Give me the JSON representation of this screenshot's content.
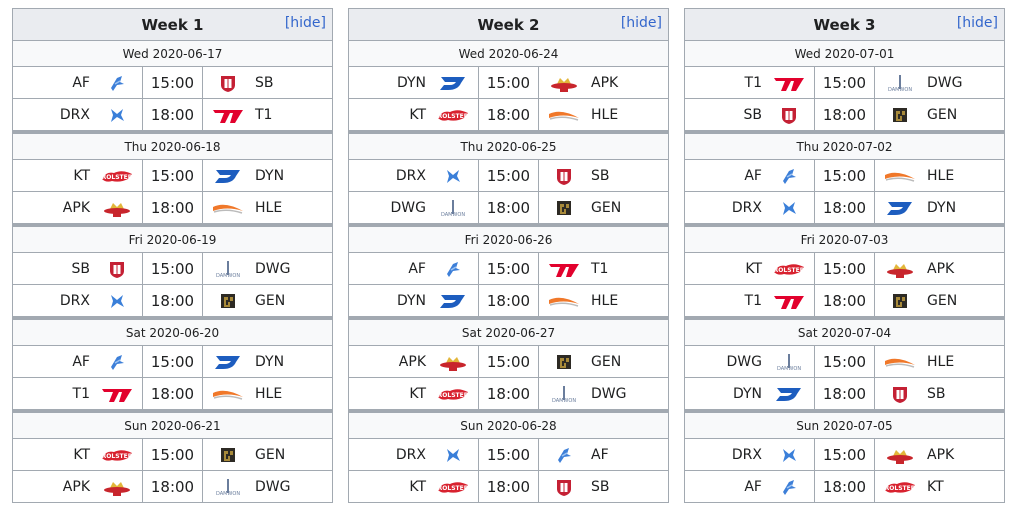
{
  "hide_label": "[hide]",
  "logo_colors": {
    "AF": "#3d7fd8",
    "DRX": "#3a7fd9",
    "SB": "#c42034",
    "T1": "#e2012d",
    "KT": "#d8222f",
    "DYN": "#1d5dbf",
    "APK": "#c8252c",
    "HLE": "#f0782a",
    "DWG": "#6a7d9c",
    "GEN": "#a88a3a"
  },
  "logo_icons": {
    "AF": "af-fox-icon",
    "DRX": "drx-x-icon",
    "SB": "sb-shield-icon",
    "T1": "t1-logo-icon",
    "KT": "kt-rolster-icon",
    "DYN": "dyn-d-icon",
    "APK": "apk-prince-icon",
    "HLE": "hle-wave-icon",
    "DWG": "dwg-damwon-icon",
    "GEN": "gen-g-icon"
  },
  "weeks": [
    {
      "title": "Week 1",
      "days": [
        {
          "date": "Wed 2020-06-17",
          "matches": [
            {
              "team1": "AF",
              "time": "15:00",
              "team2": "SB"
            },
            {
              "team1": "DRX",
              "time": "18:00",
              "team2": "T1"
            }
          ]
        },
        {
          "date": "Thu 2020-06-18",
          "matches": [
            {
              "team1": "KT",
              "time": "15:00",
              "team2": "DYN"
            },
            {
              "team1": "APK",
              "time": "18:00",
              "team2": "HLE"
            }
          ]
        },
        {
          "date": "Fri 2020-06-19",
          "matches": [
            {
              "team1": "SB",
              "time": "15:00",
              "team2": "DWG"
            },
            {
              "team1": "DRX",
              "time": "18:00",
              "team2": "GEN"
            }
          ]
        },
        {
          "date": "Sat 2020-06-20",
          "matches": [
            {
              "team1": "AF",
              "time": "15:00",
              "team2": "DYN"
            },
            {
              "team1": "T1",
              "time": "18:00",
              "team2": "HLE"
            }
          ]
        },
        {
          "date": "Sun 2020-06-21",
          "matches": [
            {
              "team1": "KT",
              "time": "15:00",
              "team2": "GEN"
            },
            {
              "team1": "APK",
              "time": "18:00",
              "team2": "DWG"
            }
          ]
        }
      ]
    },
    {
      "title": "Week 2",
      "days": [
        {
          "date": "Wed 2020-06-24",
          "matches": [
            {
              "team1": "DYN",
              "time": "15:00",
              "team2": "APK"
            },
            {
              "team1": "KT",
              "time": "18:00",
              "team2": "HLE"
            }
          ]
        },
        {
          "date": "Thu 2020-06-25",
          "matches": [
            {
              "team1": "DRX",
              "time": "15:00",
              "team2": "SB"
            },
            {
              "team1": "DWG",
              "time": "18:00",
              "team2": "GEN"
            }
          ]
        },
        {
          "date": "Fri 2020-06-26",
          "matches": [
            {
              "team1": "AF",
              "time": "15:00",
              "team2": "T1"
            },
            {
              "team1": "DYN",
              "time": "18:00",
              "team2": "HLE"
            }
          ]
        },
        {
          "date": "Sat 2020-06-27",
          "matches": [
            {
              "team1": "APK",
              "time": "15:00",
              "team2": "GEN"
            },
            {
              "team1": "KT",
              "time": "18:00",
              "team2": "DWG"
            }
          ]
        },
        {
          "date": "Sun 2020-06-28",
          "matches": [
            {
              "team1": "DRX",
              "time": "15:00",
              "team2": "AF"
            },
            {
              "team1": "KT",
              "time": "18:00",
              "team2": "SB"
            }
          ]
        }
      ]
    },
    {
      "title": "Week 3",
      "days": [
        {
          "date": "Wed 2020-07-01",
          "matches": [
            {
              "team1": "T1",
              "time": "15:00",
              "team2": "DWG"
            },
            {
              "team1": "SB",
              "time": "18:00",
              "team2": "GEN"
            }
          ]
        },
        {
          "date": "Thu 2020-07-02",
          "matches": [
            {
              "team1": "AF",
              "time": "15:00",
              "team2": "HLE"
            },
            {
              "team1": "DRX",
              "time": "18:00",
              "team2": "DYN"
            }
          ]
        },
        {
          "date": "Fri 2020-07-03",
          "matches": [
            {
              "team1": "KT",
              "time": "15:00",
              "team2": "APK"
            },
            {
              "team1": "T1",
              "time": "18:00",
              "team2": "GEN"
            }
          ]
        },
        {
          "date": "Sat 2020-07-04",
          "matches": [
            {
              "team1": "DWG",
              "time": "15:00",
              "team2": "HLE"
            },
            {
              "team1": "DYN",
              "time": "18:00",
              "team2": "SB"
            }
          ]
        },
        {
          "date": "Sun 2020-07-05",
          "matches": [
            {
              "team1": "DRX",
              "time": "15:00",
              "team2": "APK"
            },
            {
              "team1": "AF",
              "time": "18:00",
              "team2": "KT"
            }
          ]
        }
      ]
    }
  ]
}
